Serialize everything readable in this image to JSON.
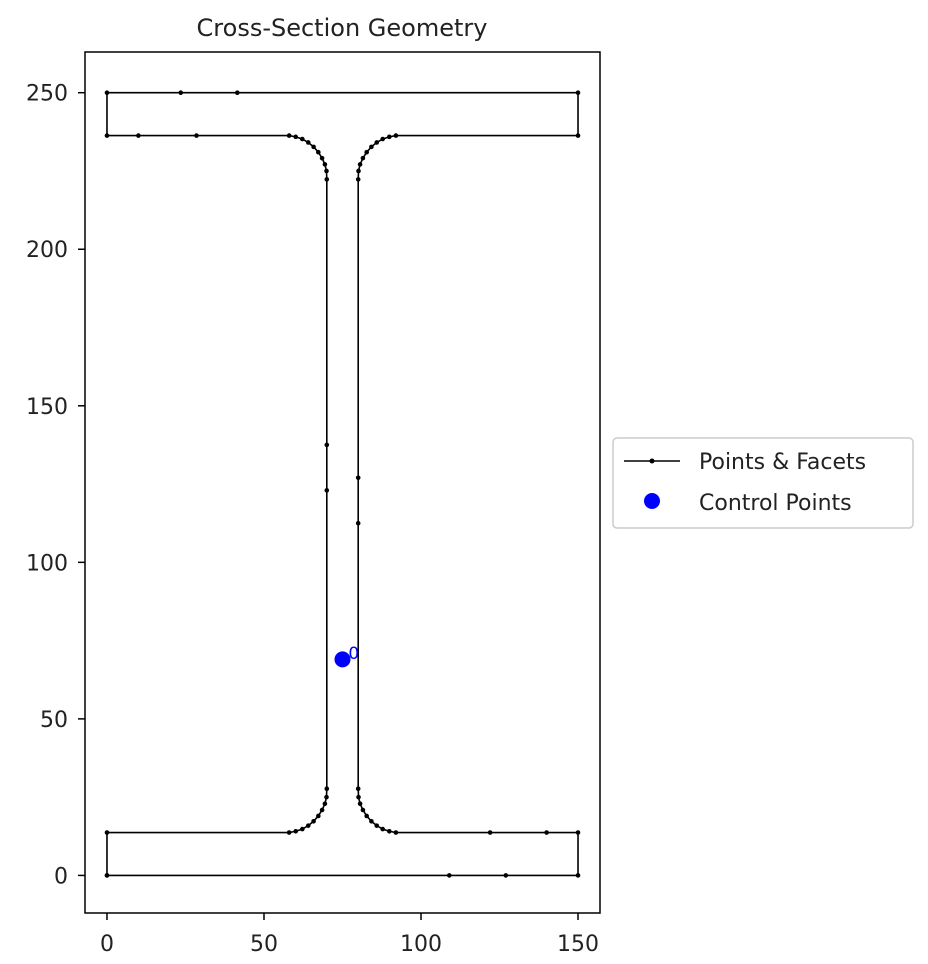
{
  "chart_data": {
    "type": "scatter",
    "title": "Cross-Section Geometry",
    "xlabel": "",
    "ylabel": "",
    "xlim": [
      -7,
      157
    ],
    "ylim": [
      -12,
      263
    ],
    "x_ticks": [
      0,
      50,
      100,
      150
    ],
    "y_ticks": [
      0,
      50,
      100,
      150,
      200,
      250
    ],
    "grid": false,
    "legend_position": "center-right outside",
    "series": [
      {
        "name": "Points & Facets",
        "kind": "polygon-outline",
        "color": "#000000",
        "points": [
          [
            0,
            0
          ],
          [
            109,
            0
          ],
          [
            127,
            0
          ],
          [
            150,
            0
          ],
          [
            150,
            13.7
          ],
          [
            140,
            13.7
          ],
          [
            122,
            13.7
          ],
          [
            92,
            13.7
          ],
          [
            89.9,
            14.1
          ],
          [
            87.8,
            14.8
          ],
          [
            85.9,
            15.9
          ],
          [
            84.2,
            17.3
          ],
          [
            82.7,
            19.0
          ],
          [
            81.5,
            20.9
          ],
          [
            80.6,
            22.9
          ],
          [
            80.1,
            25.0
          ],
          [
            80,
            27.7
          ],
          [
            80,
            112.5
          ],
          [
            80,
            127
          ],
          [
            80,
            222.3
          ],
          [
            80.1,
            225.0
          ],
          [
            80.6,
            227.1
          ],
          [
            81.5,
            229.1
          ],
          [
            82.7,
            231.0
          ],
          [
            84.2,
            232.7
          ],
          [
            85.9,
            234.1
          ],
          [
            87.8,
            235.2
          ],
          [
            89.9,
            235.9
          ],
          [
            92,
            236.3
          ],
          [
            150,
            236.3
          ],
          [
            150,
            250
          ],
          [
            41.5,
            250
          ],
          [
            23.5,
            250
          ],
          [
            0,
            250
          ],
          [
            0,
            236.3
          ],
          [
            10,
            236.3
          ],
          [
            28.5,
            236.3
          ],
          [
            58,
            236.3
          ],
          [
            60.1,
            235.9
          ],
          [
            62.2,
            235.2
          ],
          [
            64.1,
            234.1
          ],
          [
            65.8,
            232.7
          ],
          [
            67.3,
            231.0
          ],
          [
            68.5,
            229.1
          ],
          [
            69.4,
            227.1
          ],
          [
            69.9,
            225.0
          ],
          [
            70,
            222.3
          ],
          [
            70,
            137.5
          ],
          [
            70,
            123
          ],
          [
            70,
            27.7
          ],
          [
            69.9,
            25.0
          ],
          [
            69.4,
            22.9
          ],
          [
            68.5,
            20.9
          ],
          [
            67.3,
            19.0
          ],
          [
            65.8,
            17.3
          ],
          [
            64.1,
            15.9
          ],
          [
            62.2,
            14.8
          ],
          [
            60.1,
            14.1
          ],
          [
            58,
            13.7
          ],
          [
            0,
            13.7
          ],
          [
            0,
            0
          ]
        ]
      },
      {
        "name": "Control Points",
        "kind": "markers",
        "color": "#0000ff",
        "points": [
          [
            75,
            69
          ]
        ],
        "annotations": [
          {
            "text": "0",
            "x": 77.5,
            "y": 71
          }
        ]
      }
    ]
  }
}
